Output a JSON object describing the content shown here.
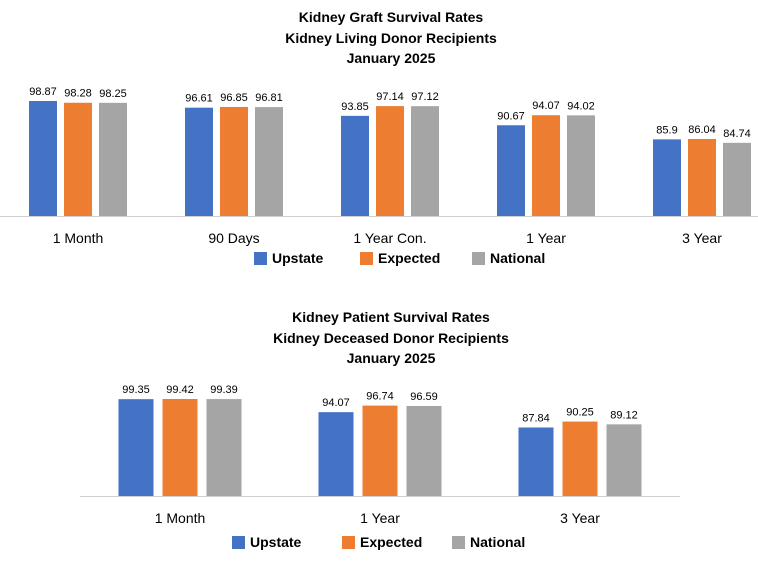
{
  "chart_data": [
    {
      "type": "bar",
      "title_lines": [
        "Kidney Graft Survival Rates",
        "Kidney Living Donor Recipients",
        "January 2025"
      ],
      "categories": [
        "1 Month",
        "90 Days",
        "1 Year Con.",
        "1 Year",
        "3 Year"
      ],
      "series": [
        {
          "name": "Upstate",
          "color": "#4472C4",
          "values": [
            98.87,
            96.61,
            93.85,
            90.67,
            85.9
          ]
        },
        {
          "name": "Expected",
          "color": "#ED7D31",
          "values": [
            98.28,
            96.85,
            97.14,
            94.07,
            86.04
          ]
        },
        {
          "name": "National",
          "color": "#A5A5A5",
          "values": [
            98.25,
            96.81,
            97.12,
            94.02,
            84.74
          ]
        }
      ],
      "value_labels": [
        [
          "98.87",
          "96.61",
          "93.85",
          "90.67",
          "85.9"
        ],
        [
          "98.28",
          "96.85",
          "97.14",
          "94.07",
          "86.04"
        ],
        [
          "98.25",
          "96.81",
          "97.12",
          "94.02",
          "84.74"
        ]
      ],
      "ylim": [
        60,
        100
      ],
      "legend": "bottom"
    },
    {
      "type": "bar",
      "title_lines": [
        "Kidney Patient Survival Rates",
        "Kidney Deceased Donor Recipients",
        "January 2025"
      ],
      "categories": [
        "1 Month",
        "1 Year",
        "3 Year"
      ],
      "series": [
        {
          "name": "Upstate",
          "color": "#4472C4",
          "values": [
            99.35,
            94.07,
            87.84
          ]
        },
        {
          "name": "Expected",
          "color": "#ED7D31",
          "values": [
            99.42,
            96.74,
            90.25
          ]
        },
        {
          "name": "National",
          "color": "#A5A5A5",
          "values": [
            99.39,
            96.59,
            89.12
          ]
        }
      ],
      "value_labels": [
        [
          "99.35",
          "94.07",
          "87.84"
        ],
        [
          "99.42",
          "96.74",
          "90.25"
        ],
        [
          "99.39",
          "96.59",
          "89.12"
        ]
      ],
      "ylim": [
        60,
        100
      ],
      "legend": "bottom"
    }
  ]
}
